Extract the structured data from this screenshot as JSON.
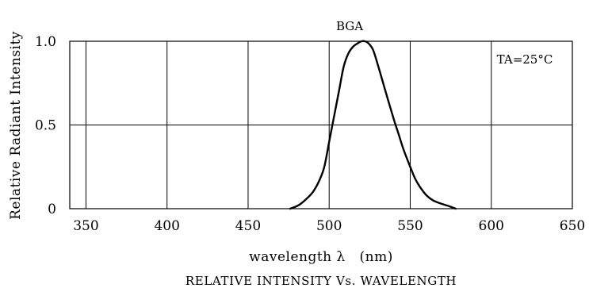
{
  "chart_data": {
    "type": "line",
    "title": "RELATIVE INTENSITY Vs. WAVELENGTH",
    "xlabel": "wavelength λ   (nm)",
    "ylabel": "Relative Radiant Intensity",
    "xlim": [
      340,
      650
    ],
    "ylim": [
      0,
      1.0
    ],
    "x_ticks": [
      350,
      400,
      450,
      500,
      550,
      600,
      650
    ],
    "y_ticks": [
      0,
      0.5,
      1.0
    ],
    "y_tick_labels": [
      "0",
      "0.5",
      "1.0"
    ],
    "grid": true,
    "annotation": "TA=25°C",
    "series": [
      {
        "name": "BGA",
        "color": "#000000",
        "x": [
          476,
          481,
          485,
          490,
          494,
          497,
          500,
          503,
          506,
          509,
          512,
          515,
          518,
          520,
          522,
          524,
          527,
          530,
          533,
          536,
          540,
          543,
          546,
          550,
          553,
          556,
          560,
          564,
          569,
          574,
          578
        ],
        "y": [
          0.0,
          0.02,
          0.05,
          0.1,
          0.17,
          0.25,
          0.4,
          0.55,
          0.7,
          0.85,
          0.93,
          0.97,
          0.99,
          1.0,
          1.0,
          0.99,
          0.95,
          0.86,
          0.76,
          0.66,
          0.53,
          0.44,
          0.35,
          0.25,
          0.18,
          0.13,
          0.08,
          0.05,
          0.03,
          0.015,
          0.0
        ]
      }
    ]
  }
}
